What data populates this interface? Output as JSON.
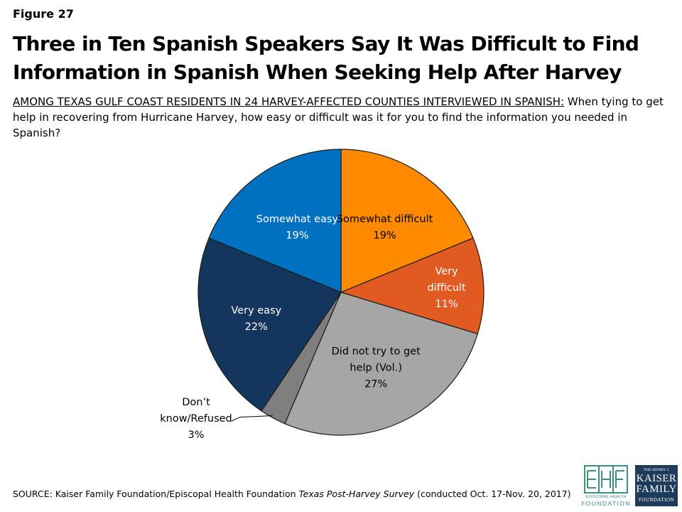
{
  "figure_label": "Figure 27",
  "title": "Three in Ten Spanish Speakers Say It Was Difficult to Find Information in Spanish When Seeking Help After Harvey",
  "question": {
    "lead": "AMONG TEXAS GULF COAST RESIDENTS IN 24 HARVEY-AFFECTED COUNTIES INTERVIEWED IN SPANISH:",
    "text": " When tying to get help in recovering from Hurricane Harvey, how easy or difficult was it for you to find the information you needed in Spanish?"
  },
  "chart_data": {
    "type": "pie",
    "slices": [
      {
        "label": [
          "Somewhat difficult",
          "19%"
        ],
        "value": 19,
        "color": "#ff8a00"
      },
      {
        "label": [
          "Very",
          "difficult",
          "11%"
        ],
        "value": 11,
        "color": "#e05a22"
      },
      {
        "label": [
          "Did not try to get",
          "help (Vol.)",
          "27%"
        ],
        "value": 27,
        "color": "#a6a6a6"
      },
      {
        "label": [
          "Don’t",
          "know/Refused",
          "3%"
        ],
        "value": 3,
        "color": "#7f7f7f"
      },
      {
        "label": [
          "Very easy",
          "22%"
        ],
        "value": 22,
        "color": "#14365e"
      },
      {
        "label": [
          "Somewhat easy",
          "19%"
        ],
        "value": 19,
        "color": "#0070c0"
      }
    ]
  },
  "source": {
    "prefix": "SOURCE: Kaiser Family Foundation/Episcopal Health Foundation ",
    "italic": "Texas Post-Harvey Survey",
    "suffix": " (conducted Oct. 17-Nov. 20, 2017)"
  },
  "logos": {
    "ehf": {
      "mark": "EHF",
      "line1": "EPISCOPAL HEALTH",
      "line2": "FOUNDATION"
    },
    "kff": {
      "line1": "THE HENRY J.",
      "line2": "KAISER",
      "line3": "FAMILY",
      "line4": "FOUNDATION"
    }
  }
}
